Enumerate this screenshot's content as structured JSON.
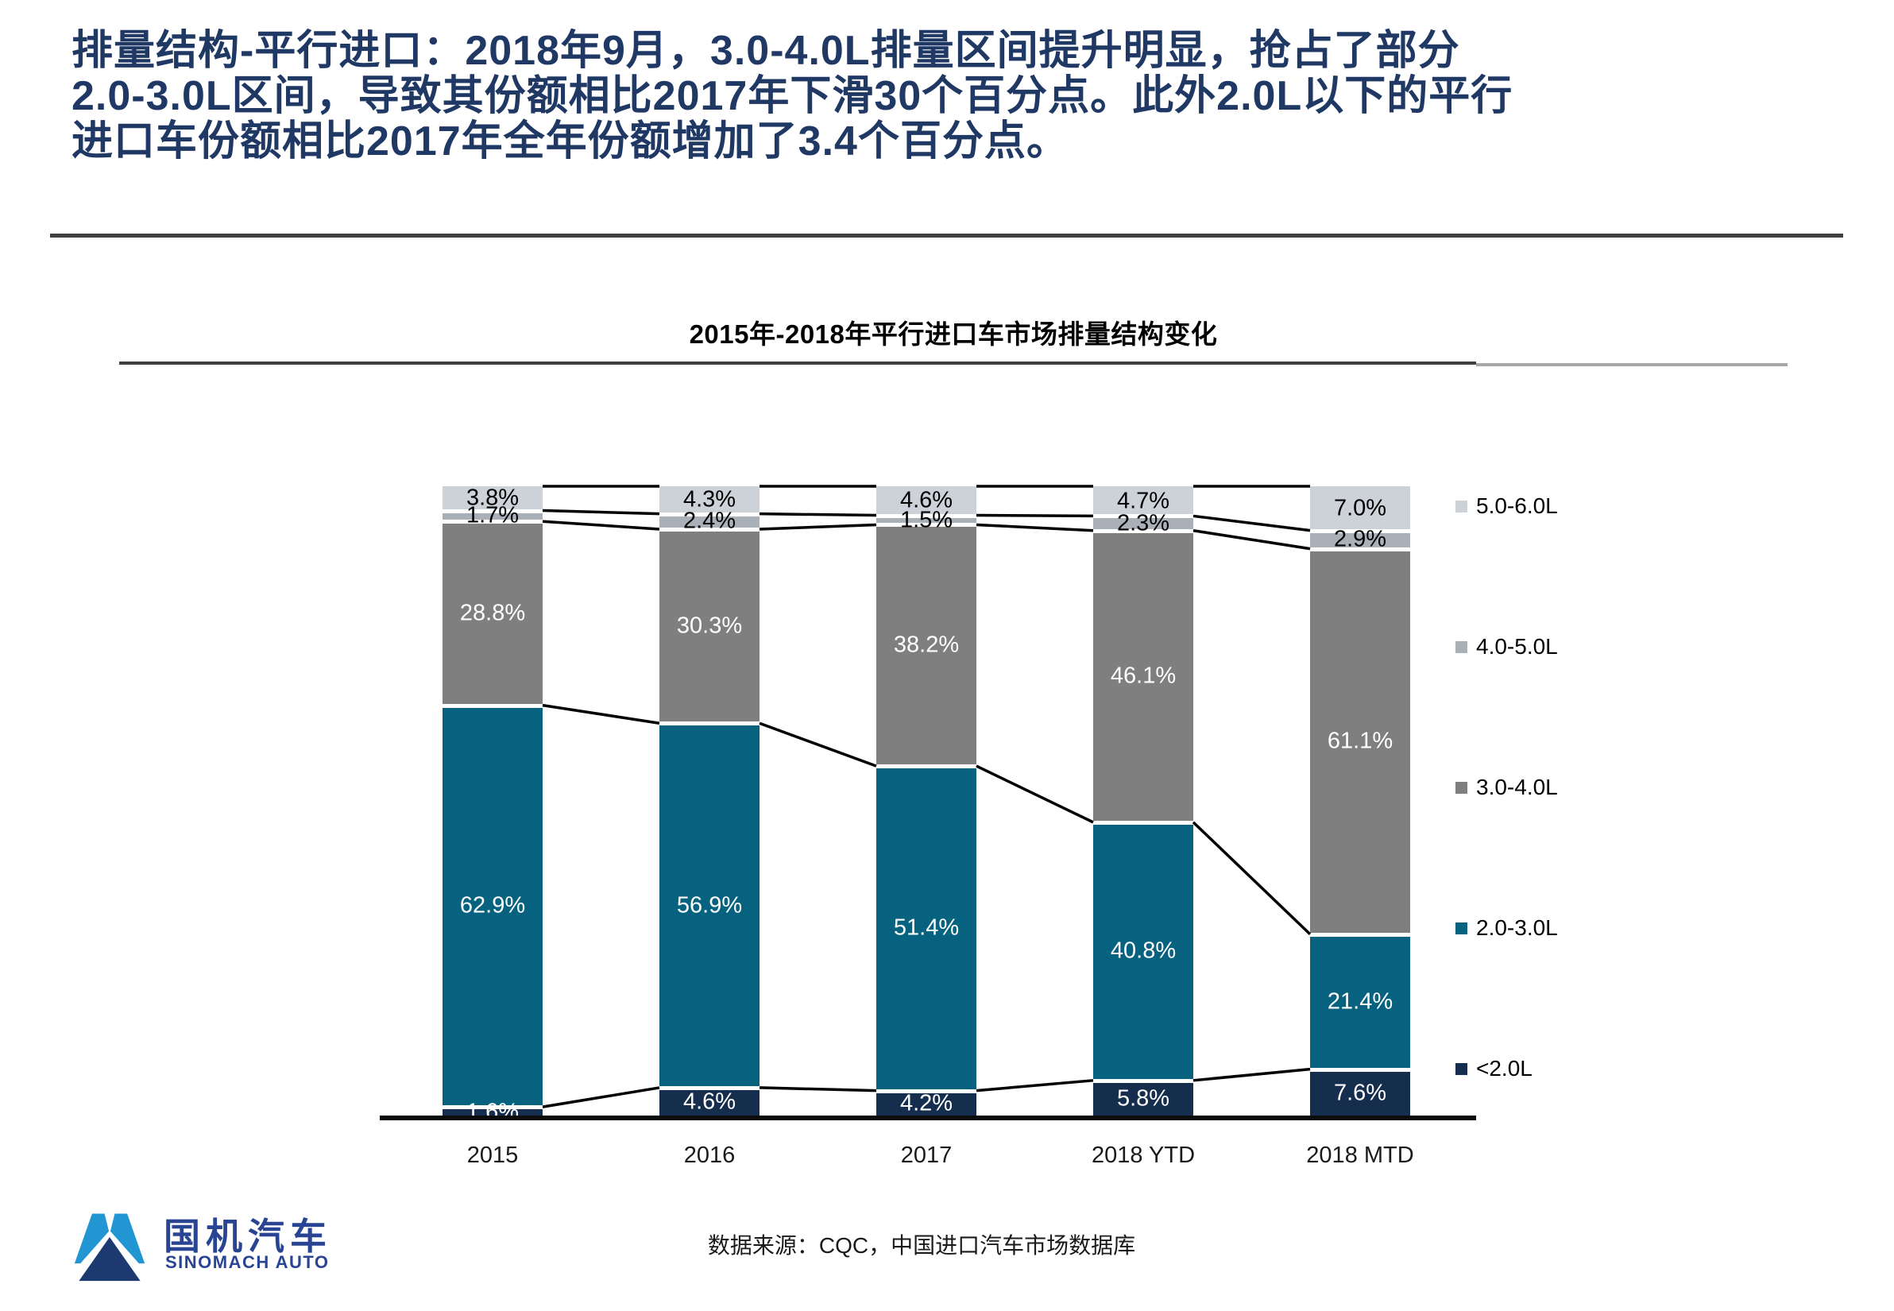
{
  "slide": {
    "title_lines": [
      "排量结构-平行进口：2018年9月，3.0-4.0L排量区间提升明显，抢占了部分",
      "2.0-3.0L区间，导致其份额相比2017年下滑30个百分点。此外2.0L以下的平行",
      "进口车份额相比2017年全年份额增加了3.4个百分点。"
    ],
    "source_note": "数据来源：CQC，中国进口汽车市场数据库"
  },
  "chart_data": {
    "type": "bar",
    "subtype": "stacked-100-percent-with-series-lines",
    "title": "2015年-2018年平行进口车市场排量结构变化",
    "categories": [
      "2015",
      "2016",
      "2017",
      "2018 YTD",
      "2018 MTD"
    ],
    "series": [
      {
        "name": "<2.0L",
        "color": "#152e4d",
        "label_color": "#ffffff",
        "values": [
          1.6,
          4.6,
          4.2,
          5.8,
          7.6
        ]
      },
      {
        "name": "2.0-3.0L",
        "color": "#06627f",
        "label_color": "#ffffff",
        "values": [
          62.9,
          56.9,
          51.4,
          40.8,
          21.4
        ]
      },
      {
        "name": "3.0-4.0L",
        "color": "#7f7f7f",
        "label_color": "#ffffff",
        "values": [
          28.8,
          30.3,
          38.2,
          46.1,
          61.1
        ]
      },
      {
        "name": "4.0-5.0L",
        "color": "#a9b0b7",
        "label_color": "#000000",
        "values": [
          1.7,
          2.4,
          1.5,
          2.3,
          2.9
        ]
      },
      {
        "name": "5.0-6.0L",
        "color": "#cdd2d8",
        "label_color": "#000000",
        "values": [
          3.8,
          4.3,
          4.6,
          4.7,
          7.0
        ]
      }
    ],
    "value_suffix": "%",
    "ylim": [
      0,
      100
    ],
    "grid": false,
    "legend_position": "right",
    "legend_order_top_to_bottom": [
      "5.0-6.0L",
      "4.0-5.0L",
      "3.0-4.0L",
      "2.0-3.0L",
      "<2.0L"
    ],
    "connector_line_color": "#000000",
    "xlabel": "",
    "ylabel": ""
  },
  "footer": {
    "logo_cn": "国机汽车",
    "logo_en": "SINOMACH AUTO"
  },
  "colors": {
    "title_text": "#1f3864",
    "divider": "#3f3f3f",
    "axis": "#0b0b0b",
    "logo_light_blue": "#2196d3",
    "logo_navy": "#1d3a70",
    "logo_text": "#2a4494"
  }
}
